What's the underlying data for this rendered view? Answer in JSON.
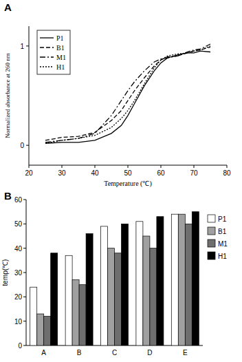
{
  "chart_data": [
    {
      "type": "line",
      "title": "A",
      "x": [
        25,
        30,
        35,
        40,
        45,
        48,
        50,
        52,
        55,
        58,
        60,
        62,
        65,
        68,
        70,
        72,
        75
      ],
      "series": [
        {
          "name": "P1",
          "color": "#000000",
          "line_style": "solid",
          "values": [
            0.02,
            0.03,
            0.03,
            0.05,
            0.12,
            0.2,
            0.3,
            0.42,
            0.6,
            0.75,
            0.83,
            0.88,
            0.91,
            0.93,
            0.93,
            0.95,
            0.94
          ]
        },
        {
          "name": "B1",
          "color": "#000000",
          "line_style": "dashed",
          "values": [
            0.05,
            0.08,
            0.09,
            0.13,
            0.25,
            0.35,
            0.45,
            0.55,
            0.68,
            0.8,
            0.86,
            0.89,
            0.9,
            0.93,
            0.95,
            0.96,
            0.99
          ]
        },
        {
          "name": "M1",
          "color": "#000000",
          "line_style": "dashdot",
          "values": [
            0.03,
            0.05,
            0.07,
            0.12,
            0.3,
            0.45,
            0.55,
            0.64,
            0.75,
            0.84,
            0.87,
            0.88,
            0.9,
            0.94,
            0.96,
            0.97,
            1.02
          ]
        },
        {
          "name": "H1",
          "color": "#000000",
          "line_style": "dotted",
          "values": [
            0.02,
            0.05,
            0.07,
            0.1,
            0.18,
            0.27,
            0.35,
            0.45,
            0.62,
            0.78,
            0.86,
            0.9,
            0.92,
            0.93,
            0.95,
            0.96,
            1.0
          ]
        }
      ],
      "x_label": "Temperature (℃)",
      "y_label": "Normalized absorbance at 260 nm",
      "xlim": [
        20,
        80
      ],
      "xticks": [
        20,
        30,
        40,
        50,
        60,
        70,
        80
      ],
      "ylim": [
        -0.2,
        1.2
      ],
      "yticks": [
        0,
        1
      ],
      "legend": "upper left"
    },
    {
      "type": "bar",
      "title": "B",
      "categories": [
        "A",
        "B",
        "C",
        "D",
        "E"
      ],
      "series": [
        {
          "name": "P1",
          "color": "#ffffff",
          "values": [
            24,
            37,
            49,
            51,
            54
          ]
        },
        {
          "name": "B1",
          "color": "#a0a0a0",
          "values": [
            13,
            27,
            40,
            45,
            54
          ]
        },
        {
          "name": "M1",
          "color": "#6e6e6e",
          "values": [
            12,
            25,
            38,
            40,
            50
          ]
        },
        {
          "name": "H1",
          "color": "#000000",
          "values": [
            38,
            46,
            50,
            53,
            55
          ]
        }
      ],
      "y_label": "temp(℃)",
      "ylim": [
        0,
        60
      ],
      "yticks": [
        0,
        10,
        20,
        30,
        40,
        50,
        60
      ],
      "legend": "right"
    }
  ]
}
